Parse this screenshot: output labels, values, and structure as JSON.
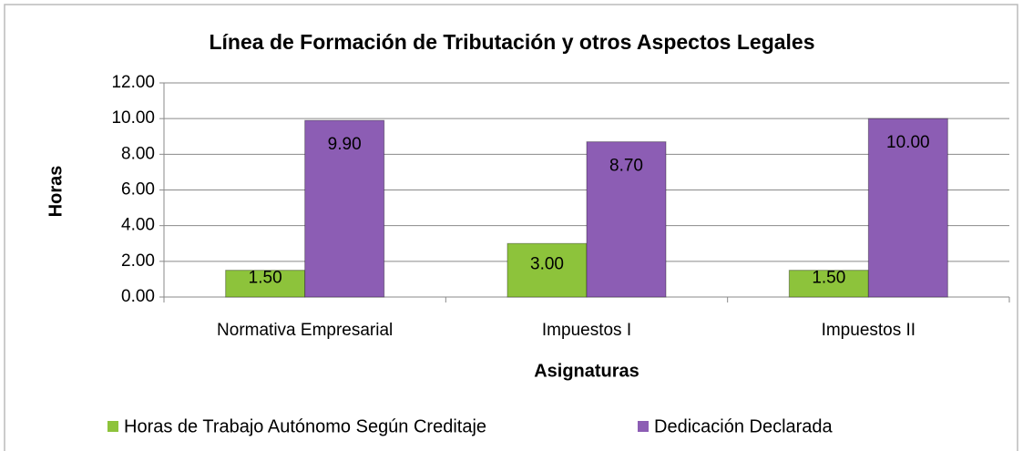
{
  "chart_data": {
    "type": "bar",
    "title": "Línea de Formación de Tributación y otros Aspectos Legales",
    "x_label": "Asignaturas",
    "y_label": "Horas",
    "categories": [
      "Normativa Empresarial",
      "Impuestos I",
      "Impuestos II"
    ],
    "series": [
      {
        "name": "Horas de Trabajo Autónomo Según Creditaje",
        "color": "#8dc33b",
        "values": [
          1.5,
          3,
          1.5
        ],
        "value_labels": [
          "1.50",
          "3.00",
          "1.50"
        ]
      },
      {
        "name": "Dedicación Declarada",
        "color": "#8c5db4",
        "values": [
          9.9,
          8.7,
          10
        ],
        "value_labels": [
          "9.90",
          "8.70",
          "10.00"
        ]
      }
    ],
    "ylim": [
      0,
      12
    ],
    "yticks": [
      {
        "value": 0,
        "label": "0.00"
      },
      {
        "value": 2,
        "label": "2.00"
      },
      {
        "value": 4,
        "label": "4.00"
      },
      {
        "value": 6,
        "label": "6.00"
      },
      {
        "value": 8,
        "label": "8.00"
      },
      {
        "value": 10,
        "label": "10.00"
      },
      {
        "value": 12,
        "label": "12.00"
      }
    ],
    "grid": true,
    "legend": "bottom"
  }
}
